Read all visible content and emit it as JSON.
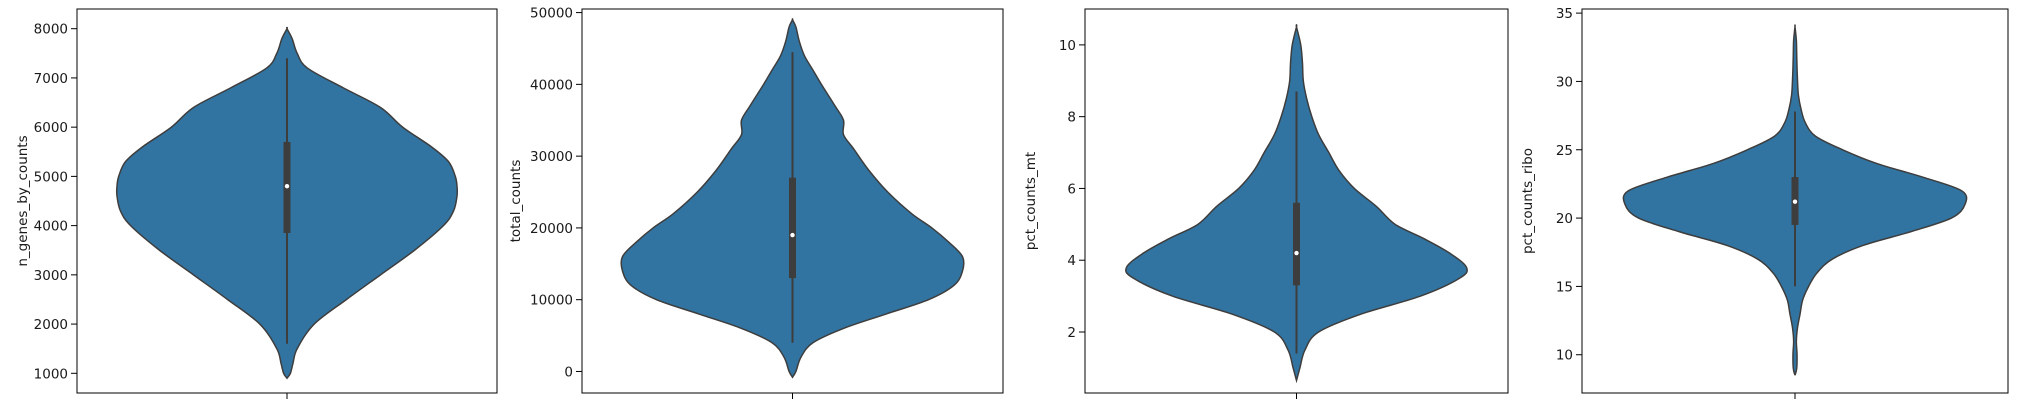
{
  "colors": {
    "violin_fill": "#3274a1",
    "violin_edge": "#3d3d3d",
    "box": "#3d3d3d",
    "median": "#ffffff",
    "axis": "#000000"
  },
  "chart_data": [
    {
      "type": "violin",
      "ylabel": "n_genes_by_counts",
      "ylim": [
        600,
        8400
      ],
      "yticks": [
        1000,
        2000,
        3000,
        4000,
        5000,
        6000,
        7000,
        8000
      ],
      "min": 900,
      "max": 8000,
      "whisker_low": 1600,
      "whisker_high": 7400,
      "q1": 3850,
      "median": 4800,
      "q3": 5700,
      "density": [
        [
          900,
          0
        ],
        [
          1000,
          0.02
        ],
        [
          1200,
          0.035
        ],
        [
          1500,
          0.06
        ],
        [
          2000,
          0.16
        ],
        [
          2500,
          0.35
        ],
        [
          3000,
          0.55
        ],
        [
          3500,
          0.75
        ],
        [
          4000,
          0.92
        ],
        [
          4300,
          0.98
        ],
        [
          4600,
          1.0
        ],
        [
          4800,
          1.0
        ],
        [
          5000,
          0.99
        ],
        [
          5300,
          0.95
        ],
        [
          5600,
          0.85
        ],
        [
          6000,
          0.68
        ],
        [
          6400,
          0.55
        ],
        [
          6800,
          0.33
        ],
        [
          7200,
          0.12
        ],
        [
          7500,
          0.06
        ],
        [
          7800,
          0.03
        ],
        [
          8000,
          0
        ]
      ]
    },
    {
      "type": "violin",
      "ylabel": "total_counts",
      "ylim": [
        -3000,
        50500
      ],
      "yticks": [
        0,
        10000,
        20000,
        30000,
        40000,
        50000
      ],
      "min": -800,
      "max": 49000,
      "whisker_low": 4000,
      "whisker_high": 44500,
      "q1": 13000,
      "median": 19000,
      "q3": 27000,
      "density": [
        [
          -800,
          0
        ],
        [
          0,
          0.02
        ],
        [
          2000,
          0.05
        ],
        [
          4000,
          0.12
        ],
        [
          6000,
          0.3
        ],
        [
          8000,
          0.55
        ],
        [
          10000,
          0.8
        ],
        [
          12000,
          0.95
        ],
        [
          14000,
          1.0
        ],
        [
          16000,
          1.0
        ],
        [
          18000,
          0.92
        ],
        [
          20000,
          0.82
        ],
        [
          22000,
          0.7
        ],
        [
          25000,
          0.56
        ],
        [
          28000,
          0.45
        ],
        [
          31000,
          0.36
        ],
        [
          33000,
          0.3
        ],
        [
          35000,
          0.3
        ],
        [
          37000,
          0.25
        ],
        [
          40000,
          0.17
        ],
        [
          42000,
          0.12
        ],
        [
          44000,
          0.07
        ],
        [
          46000,
          0.04
        ],
        [
          48000,
          0.02
        ],
        [
          49000,
          0
        ]
      ]
    },
    {
      "type": "violin",
      "ylabel": "pct_counts_mt",
      "ylim": [
        0.3,
        11.0
      ],
      "yticks": [
        2,
        4,
        6,
        8,
        10
      ],
      "min": 0.65,
      "max": 10.5,
      "whisker_low": 1.4,
      "whisker_high": 8.7,
      "q1": 3.3,
      "median": 4.2,
      "q3": 5.6,
      "density": [
        [
          0.65,
          0
        ],
        [
          1.0,
          0.02
        ],
        [
          1.5,
          0.05
        ],
        [
          2.0,
          0.13
        ],
        [
          2.5,
          0.38
        ],
        [
          3.0,
          0.73
        ],
        [
          3.5,
          0.96
        ],
        [
          3.8,
          1.0
        ],
        [
          4.2,
          0.9
        ],
        [
          4.6,
          0.75
        ],
        [
          5.0,
          0.58
        ],
        [
          5.5,
          0.47
        ],
        [
          6.0,
          0.34
        ],
        [
          6.5,
          0.25
        ],
        [
          7.0,
          0.19
        ],
        [
          7.5,
          0.13
        ],
        [
          8.0,
          0.09
        ],
        [
          8.5,
          0.06
        ],
        [
          9.0,
          0.04
        ],
        [
          9.5,
          0.035
        ],
        [
          10.0,
          0.025
        ],
        [
          10.5,
          0
        ]
      ]
    },
    {
      "type": "violin",
      "ylabel": "pct_counts_ribo",
      "ylim": [
        7.2,
        35.3
      ],
      "yticks": [
        10,
        15,
        20,
        25,
        30,
        35
      ],
      "min": 8.5,
      "max": 34.0,
      "whisker_low": 15.0,
      "whisker_high": 27.8,
      "q1": 19.5,
      "median": 21.2,
      "q3": 23.0,
      "density": [
        [
          8.5,
          0
        ],
        [
          9,
          0.01
        ],
        [
          10,
          0.012
        ],
        [
          11,
          0.008
        ],
        [
          12,
          0.015
        ],
        [
          13,
          0.03
        ],
        [
          14,
          0.045
        ],
        [
          15,
          0.08
        ],
        [
          16,
          0.13
        ],
        [
          17,
          0.22
        ],
        [
          18,
          0.4
        ],
        [
          19,
          0.68
        ],
        [
          20,
          0.92
        ],
        [
          21,
          1.0
        ],
        [
          22,
          0.98
        ],
        [
          23,
          0.75
        ],
        [
          24,
          0.48
        ],
        [
          25,
          0.28
        ],
        [
          26,
          0.12
        ],
        [
          27,
          0.06
        ],
        [
          28,
          0.035
        ],
        [
          29,
          0.02
        ],
        [
          30,
          0.015
        ],
        [
          31,
          0.012
        ],
        [
          32,
          0.01
        ],
        [
          33,
          0.008
        ],
        [
          34,
          0
        ]
      ]
    }
  ]
}
